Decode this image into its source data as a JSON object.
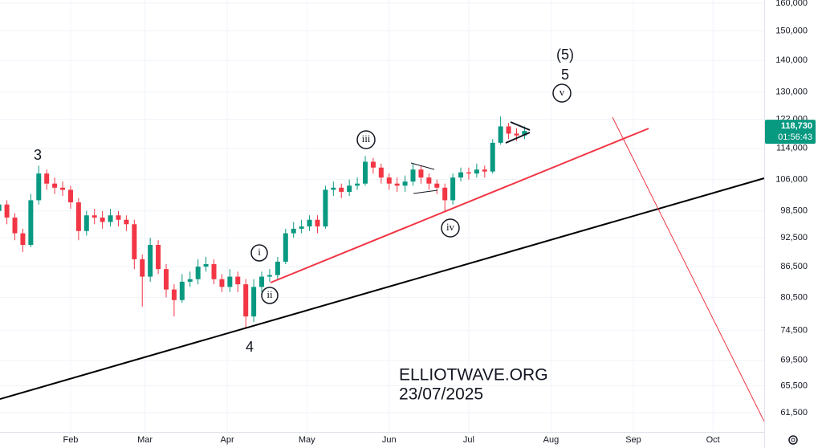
{
  "chart_data": {
    "type": "candlestick",
    "x": [
      5,
      8,
      11,
      14,
      17,
      20,
      23,
      26,
      29,
      32,
      35,
      38,
      41,
      44,
      47,
      50,
      53,
      56,
      59,
      62,
      65,
      68,
      71,
      74,
      77,
      80,
      83,
      86,
      89,
      92,
      95,
      98,
      101,
      104,
      107,
      110,
      113,
      116,
      119,
      122,
      125,
      128,
      131,
      134,
      137,
      140,
      143,
      146,
      149,
      152,
      155,
      158,
      161,
      164,
      167,
      170,
      173,
      176,
      179,
      182,
      185,
      188,
      191,
      194,
      197,
      200,
      203
    ],
    "open": [
      98500,
      100000,
      97000,
      93500,
      91000,
      101000,
      107500,
      105000,
      104000,
      103500,
      100500,
      94000,
      97500,
      97000,
      96000,
      97500,
      96500,
      95500,
      88000,
      84500,
      91000,
      86000,
      82000,
      80000,
      83500,
      84000,
      86500,
      87000,
      84000,
      82500,
      84500,
      83000,
      77000,
      82500,
      84500,
      84800,
      87500,
      93500,
      94500,
      95000,
      96500,
      95000,
      103500,
      104000,
      103000,
      104500,
      105000,
      110500,
      109000,
      106500,
      105000,
      104500,
      105500,
      108500,
      106500,
      105000,
      104000,
      101000,
      106500,
      107800,
      107500,
      108500,
      108000,
      115500,
      120000,
      118000,
      117500
    ],
    "high": [
      102000,
      101000,
      98000,
      94500,
      102500,
      109500,
      108500,
      106500,
      105500,
      104500,
      101500,
      98500,
      99000,
      98500,
      99000,
      98500,
      97500,
      96500,
      89000,
      92500,
      92000,
      87000,
      83000,
      85000,
      85500,
      88000,
      88500,
      88000,
      85000,
      86000,
      85500,
      84000,
      84000,
      85500,
      86000,
      88500,
      94500,
      96000,
      96500,
      97500,
      97500,
      104500,
      105500,
      105000,
      106000,
      106500,
      112000,
      111500,
      110000,
      107500,
      106500,
      107000,
      110000,
      109500,
      107500,
      106000,
      105000,
      107500,
      109000,
      109000,
      110000,
      109500,
      116500,
      122800,
      121000,
      119500,
      120000
    ],
    "low": [
      97500,
      95500,
      92000,
      89500,
      90500,
      100000,
      103500,
      102500,
      102000,
      99000,
      92000,
      93000,
      95500,
      94500,
      95000,
      95000,
      94000,
      86000,
      78800,
      83500,
      85000,
      80500,
      77000,
      79500,
      82500,
      83000,
      85500,
      83000,
      81500,
      81500,
      81500,
      74800,
      76000,
      81500,
      83500,
      84000,
      87000,
      92500,
      93500,
      94000,
      93500,
      94500,
      102000,
      101500,
      102000,
      103500,
      104500,
      107500,
      105000,
      103500,
      103000,
      103000,
      104500,
      105000,
      103500,
      102500,
      98500,
      100000,
      105500,
      106000,
      106500,
      106500,
      107500,
      115000,
      116500,
      116000,
      116500
    ],
    "close": [
      100000,
      97000,
      93500,
      91000,
      101000,
      107500,
      105000,
      104000,
      103500,
      100500,
      94000,
      97500,
      97000,
      96000,
      97500,
      96500,
      95500,
      88000,
      84500,
      91000,
      86000,
      82000,
      80000,
      83500,
      84000,
      86500,
      87000,
      84000,
      82500,
      84500,
      83000,
      77000,
      82500,
      84500,
      84800,
      87500,
      93500,
      94500,
      95000,
      96500,
      95000,
      103500,
      104000,
      103000,
      104500,
      105000,
      110500,
      109000,
      106500,
      105000,
      104500,
      105500,
      108500,
      106500,
      105000,
      104000,
      101000,
      106500,
      107800,
      107500,
      108500,
      108000,
      115500,
      120000,
      118000,
      117500,
      118730
    ],
    "up_color": "#089981",
    "down_color": "#f23645",
    "log_scale": true,
    "grid": true,
    "xlim": [
      5.4,
      293.3
    ],
    "xticks": [
      {
        "value": 32,
        "label": "Feb"
      },
      {
        "value": 60,
        "label": "Mar"
      },
      {
        "value": 91,
        "label": "Apr"
      },
      {
        "value": 121,
        "label": "May"
      },
      {
        "value": 152,
        "label": "Jun"
      },
      {
        "value": 182,
        "label": "Jul"
      },
      {
        "value": 213,
        "label": "Aug"
      },
      {
        "value": 244,
        "label": "Sep"
      },
      {
        "value": 274,
        "label": "Oct"
      }
    ],
    "ylim": [
      58800,
      161200
    ],
    "yticks": [
      {
        "value": 160000,
        "label": "160,000"
      },
      {
        "value": 150000,
        "label": "150,000"
      },
      {
        "value": 140000,
        "label": "140,000"
      },
      {
        "value": 130000,
        "label": "130,000"
      },
      {
        "value": 122000,
        "label": "122,000"
      },
      {
        "value": 114000,
        "label": "114,000"
      },
      {
        "value": 106000,
        "label": "106,000"
      },
      {
        "value": 98500,
        "label": "98,500"
      },
      {
        "value": 92500,
        "label": "92,500"
      },
      {
        "value": 86500,
        "label": "86,500"
      },
      {
        "value": 80500,
        "label": "80,500"
      },
      {
        "value": 74500,
        "label": "74,500"
      },
      {
        "value": 69500,
        "label": "69,500"
      },
      {
        "value": 65500,
        "label": "65,500"
      },
      {
        "value": 61500,
        "label": "61,500"
      }
    ],
    "last_price": {
      "value": 118730,
      "label": "118,730"
    },
    "countdown": "01:56:43",
    "annotations": [
      "3",
      "4",
      "(5)",
      "5",
      "i",
      "ii",
      "iii",
      "iv",
      "v",
      "ELLIOTWAVE.ORG",
      "23/07/2025"
    ]
  }
}
